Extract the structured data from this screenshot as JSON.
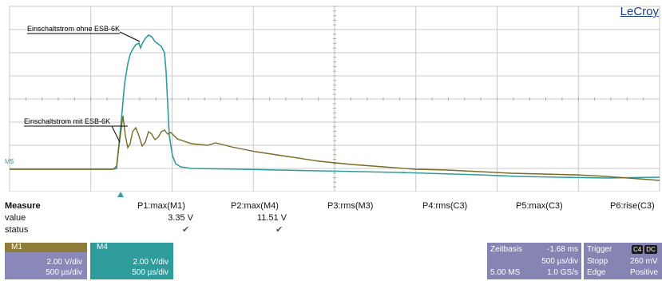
{
  "brand": "LeCroy",
  "annotations": {
    "without": "Einschaltstrom ohne ESB-6K",
    "with": "Einschaltstrom mit ESB-6K"
  },
  "trace_tag": "M$",
  "measure": {
    "title": "Measure",
    "row_labels": {
      "value": "value",
      "status": "status"
    },
    "params": [
      {
        "label": "P1:max(M1)",
        "value": "3.35 V",
        "status": "✔"
      },
      {
        "label": "P2:max(M4)",
        "value": "11.51 V",
        "status": "✔"
      },
      {
        "label": "P3:rms(M3)",
        "value": "",
        "status": ""
      },
      {
        "label": "P4:rms(C3)",
        "value": "",
        "status": ""
      },
      {
        "label": "P5:max(C3)",
        "value": "",
        "status": ""
      },
      {
        "label": "P6:rise(C3)",
        "value": "",
        "status": ""
      }
    ]
  },
  "channels": [
    {
      "name": "M1",
      "vdiv": "2.00 V/div",
      "tdiv": "500 µs/div",
      "color": "#8e7d3a",
      "body": "#8a88b8"
    },
    {
      "name": "M4",
      "vdiv": "2.00 V/div",
      "tdiv": "500 µs/div",
      "color": "#2f9c9c",
      "body": "#2f9c9c"
    }
  ],
  "timebase": {
    "label": "Zeitbasis",
    "offset": "-1.68 ms",
    "tdiv": "500 µs/div",
    "samples": "5.00 MS",
    "rate": "1.0 GS/s"
  },
  "trigger": {
    "label": "Trigger",
    "badge1": "C4",
    "badge2": "DC",
    "mode": "Stopp",
    "level": "260 mV",
    "type": "Edge",
    "slope": "Positive"
  },
  "colors": {
    "m4_trace": "#2f9c9c",
    "m1_trace": "#7a6a26",
    "grid": "#c9c9c9"
  }
}
